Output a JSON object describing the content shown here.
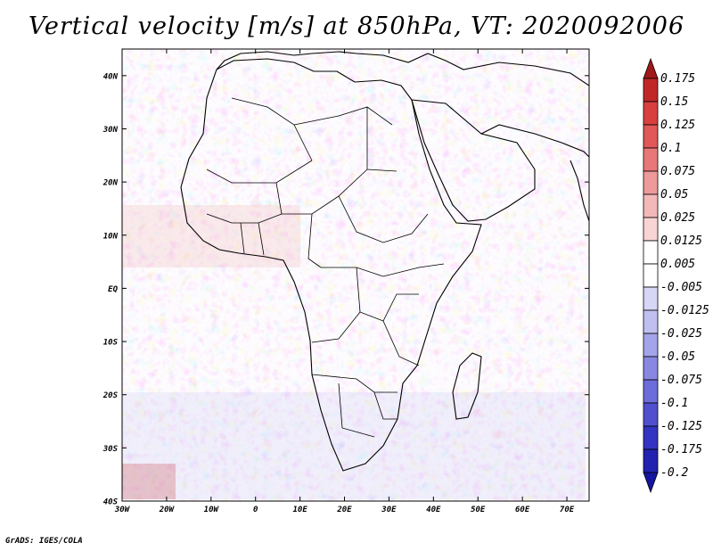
{
  "title": "Vertical velocity [m/s] at 850hPa, VT: 2020092006",
  "credit": "GrADS: IGES/COLA",
  "map": {
    "projection": "latlon",
    "lon_range": [
      -30,
      75
    ],
    "lat_range": [
      -40,
      45
    ],
    "lat_labels": [
      "40N",
      "30N",
      "20N",
      "10N",
      "EQ",
      "10S",
      "20S",
      "30S",
      "40S"
    ],
    "lat_values": [
      40,
      30,
      20,
      10,
      0,
      -10,
      -20,
      -30,
      -40
    ],
    "lon_labels": [
      "30W",
      "20W",
      "10W",
      "0",
      "10E",
      "20E",
      "30E",
      "40E",
      "50E",
      "60E",
      "70E"
    ],
    "lon_values": [
      -30,
      -20,
      -10,
      0,
      10,
      20,
      30,
      40,
      50,
      60,
      70
    ]
  },
  "colorbar": {
    "levels": [
      "0.175",
      "0.15",
      "0.125",
      "0.1",
      "0.075",
      "0.05",
      "0.025",
      "0.0125",
      "0.005",
      "-0.005",
      "-0.0125",
      "-0.025",
      "-0.05",
      "-0.075",
      "-0.1",
      "-0.125",
      "-0.175",
      "-0.2"
    ],
    "colors": [
      "#a01818",
      "#c02828",
      "#d84040",
      "#e05858",
      "#e87878",
      "#ee9a9a",
      "#f3b8b8",
      "#f8d4d4",
      "#ffffff",
      "#ffffff",
      "#d6d6f6",
      "#c0c0f0",
      "#a4a4ea",
      "#8888e2",
      "#6c6cda",
      "#5050cf",
      "#3434c2",
      "#2222b0",
      "#1414a0"
    ]
  }
}
